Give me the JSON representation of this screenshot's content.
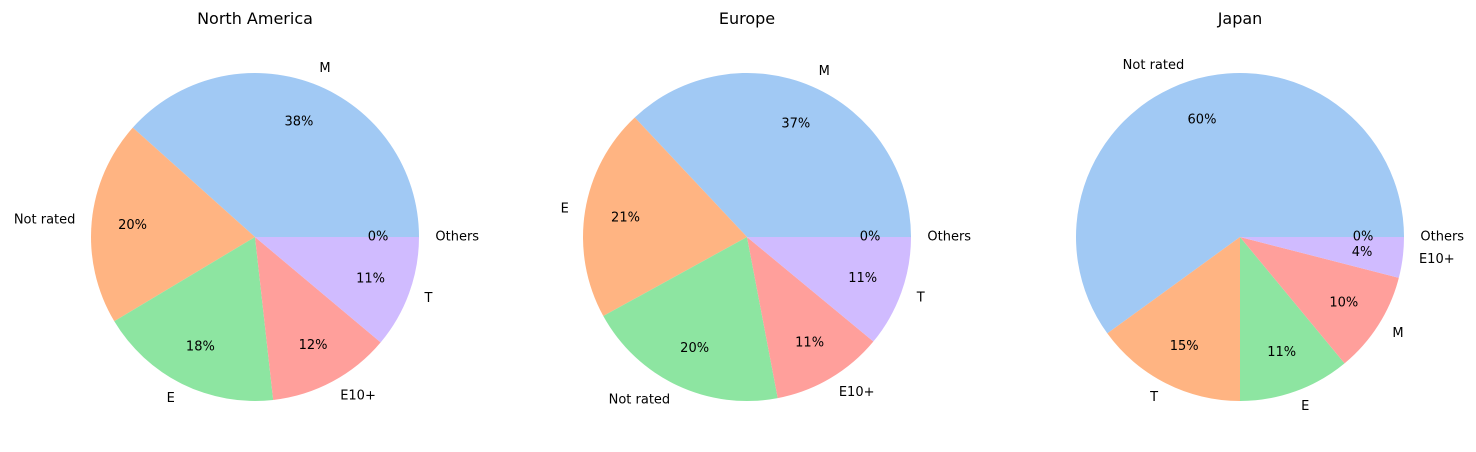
{
  "chart_data": [
    {
      "type": "pie",
      "title": "North America",
      "slices": [
        {
          "label": "M",
          "value": 38,
          "pct_label": "38%",
          "color": "#a1c9f4"
        },
        {
          "label": "Not rated",
          "value": 20,
          "pct_label": "20%",
          "color": "#ffb482"
        },
        {
          "label": "E",
          "value": 18,
          "pct_label": "18%",
          "color": "#8de5a1"
        },
        {
          "label": "E10+",
          "value": 12,
          "pct_label": "12%",
          "color": "#ff9f9b"
        },
        {
          "label": "T",
          "value": 11,
          "pct_label": "11%",
          "color": "#d0bbff"
        },
        {
          "label": "Others",
          "value": 0,
          "pct_label": "0%",
          "color": "#debb9b"
        }
      ]
    },
    {
      "type": "pie",
      "title": "Europe",
      "slices": [
        {
          "label": "M",
          "value": 37,
          "pct_label": "37%",
          "color": "#a1c9f4"
        },
        {
          "label": "E",
          "value": 21,
          "pct_label": "21%",
          "color": "#ffb482"
        },
        {
          "label": "Not rated",
          "value": 20,
          "pct_label": "20%",
          "color": "#8de5a1"
        },
        {
          "label": "E10+",
          "value": 11,
          "pct_label": "11%",
          "color": "#ff9f9b"
        },
        {
          "label": "T",
          "value": 11,
          "pct_label": "11%",
          "color": "#d0bbff"
        },
        {
          "label": "Others",
          "value": 0,
          "pct_label": "0%",
          "color": "#debb9b"
        }
      ]
    },
    {
      "type": "pie",
      "title": "Japan",
      "slices": [
        {
          "label": "Not rated",
          "value": 60,
          "pct_label": "60%",
          "color": "#a1c9f4"
        },
        {
          "label": "T",
          "value": 15,
          "pct_label": "15%",
          "color": "#ffb482"
        },
        {
          "label": "E",
          "value": 11,
          "pct_label": "11%",
          "color": "#8de5a1"
        },
        {
          "label": "M",
          "value": 10,
          "pct_label": "10%",
          "color": "#ff9f9b"
        },
        {
          "label": "E10+",
          "value": 4,
          "pct_label": "4%",
          "color": "#d0bbff"
        },
        {
          "label": "Others",
          "value": 0,
          "pct_label": "0%",
          "color": "#debb9b"
        }
      ]
    }
  ]
}
